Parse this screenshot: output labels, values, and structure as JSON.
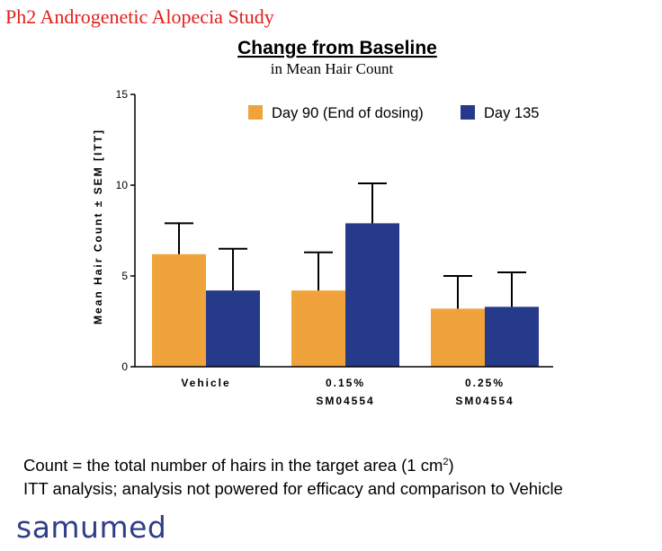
{
  "header": {
    "study_title": "Ph2 Androgenetic Alopecia Study"
  },
  "chart_data": {
    "type": "bar",
    "title": "Change from Baseline",
    "subtitle": "in Mean Hair Count",
    "ylabel": "Mean Hair Count ± SEM [ITT]",
    "xlabel": "",
    "ylim": [
      0,
      15
    ],
    "yticks": [
      0,
      5,
      10,
      15
    ],
    "grid": false,
    "legend_position": "top-right",
    "categories": [
      "Vehicle",
      "0.15%\nSM04554",
      "0.25%\nSM04554"
    ],
    "series": [
      {
        "name": "Day 90 (End of dosing)",
        "color": "#f0a33a",
        "values": [
          6.2,
          4.2,
          3.2
        ],
        "errors": [
          1.7,
          2.1,
          1.8
        ]
      },
      {
        "name": "Day 135",
        "color": "#263a8a",
        "values": [
          4.2,
          7.9,
          3.3
        ],
        "errors": [
          2.3,
          2.2,
          1.9
        ]
      }
    ]
  },
  "footnotes": {
    "line1_text": "Count = the total number of hairs in the target area (1 cm",
    "line1_sup": "2",
    "line1_end": ")",
    "line2": "ITT analysis; analysis not powered for efficacy and comparison to Vehicle"
  },
  "logo": {
    "text": "samumed"
  }
}
